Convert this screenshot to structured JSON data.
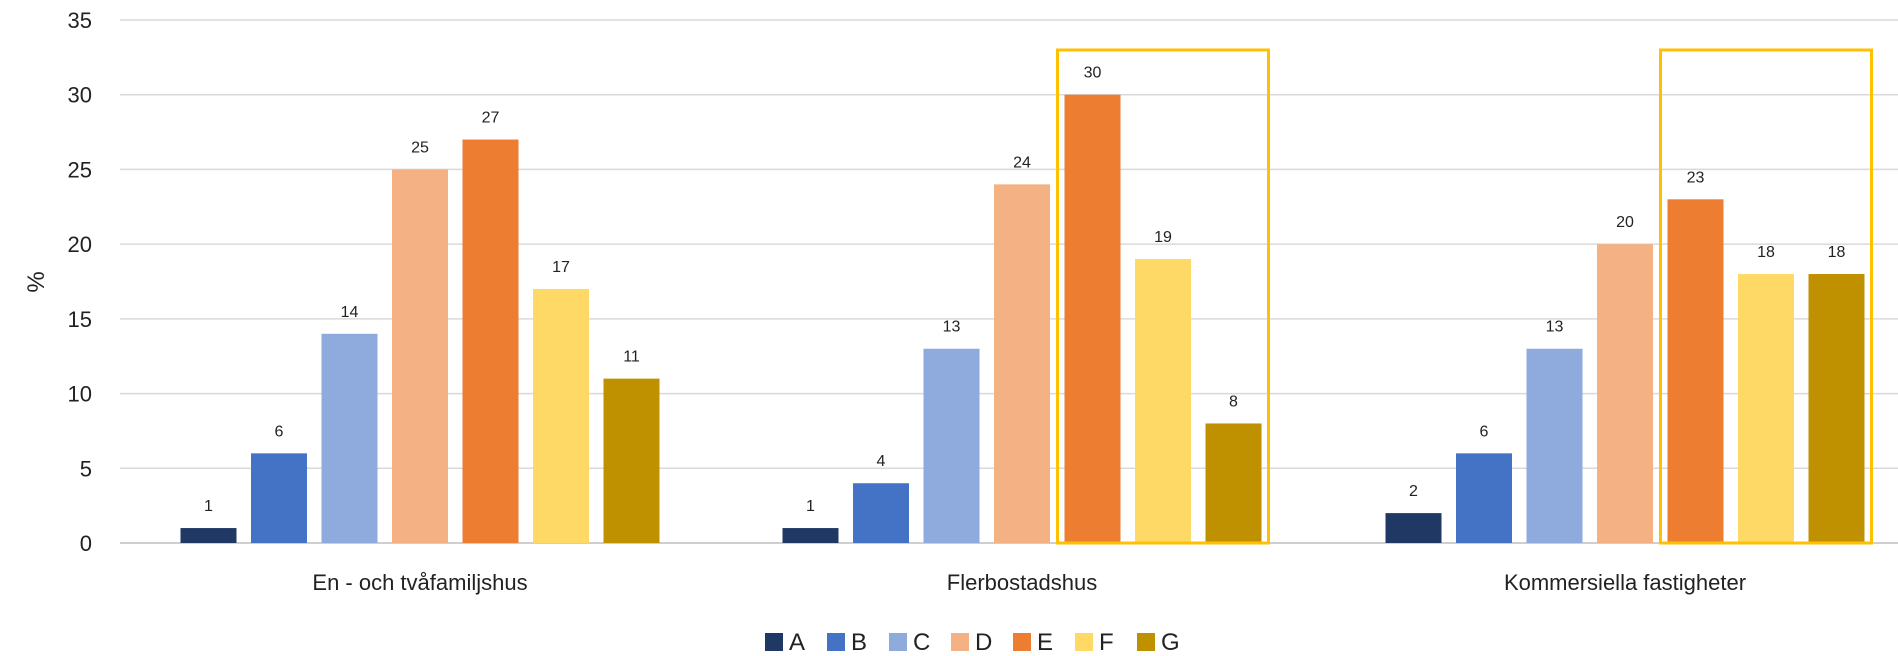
{
  "chart_data": {
    "type": "bar",
    "ylabel": "%",
    "xlabel": "",
    "ylim": [
      0,
      35
    ],
    "yticks": [
      0,
      5,
      10,
      15,
      20,
      25,
      30,
      35
    ],
    "grid": true,
    "legend_position": "bottom",
    "categories": [
      "En - och tvåfamiljshus",
      "Flerbostadshus",
      "Kommersiella fastigheter"
    ],
    "series": [
      {
        "name": "A",
        "color": "#1F3864",
        "values": [
          1,
          1,
          2
        ]
      },
      {
        "name": "B",
        "color": "#4472C4",
        "values": [
          6,
          4,
          6
        ]
      },
      {
        "name": "C",
        "color": "#8FAADC",
        "values": [
          14,
          13,
          13
        ]
      },
      {
        "name": "D",
        "color": "#F4B183",
        "values": [
          25,
          24,
          20
        ]
      },
      {
        "name": "E",
        "color": "#ED7D31",
        "values": [
          27,
          30,
          23
        ]
      },
      {
        "name": "F",
        "color": "#FFD966",
        "values": [
          17,
          19,
          18
        ]
      },
      {
        "name": "G",
        "color": "#BF9000",
        "values": [
          11,
          8,
          18
        ]
      }
    ],
    "highlights": [
      {
        "category": "Flerbostadshus",
        "from_series": "E",
        "to_series": "G",
        "color": "#FFC000"
      },
      {
        "category": "Kommersiella fastigheter",
        "from_series": "E",
        "to_series": "G",
        "color": "#FFC000"
      }
    ]
  }
}
